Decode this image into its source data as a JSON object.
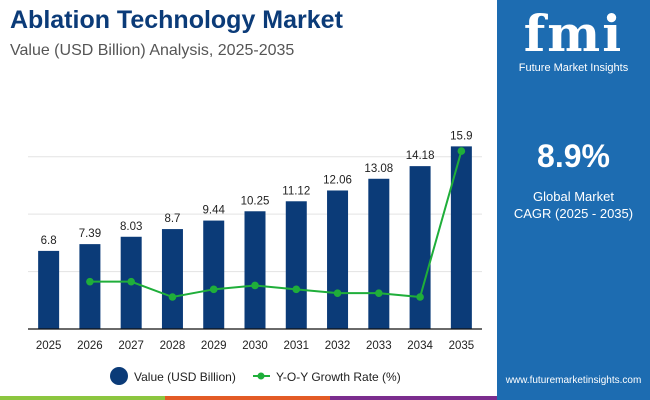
{
  "title": "Ablation Technology Market",
  "subtitle": "Value (USD Billion) Analysis, 2025-2035",
  "side_panel": {
    "logo_text": "fmi",
    "logo_caption": "Future Market Insights",
    "cagr_value": "8.9%",
    "cagr_label_1": "Global Market",
    "cagr_label_2": "CAGR (2025 - 2035)",
    "url": "www.futuremarketinsights.com"
  },
  "colors": {
    "bar": "#0b3b78",
    "line": "#1fae3a",
    "panel": "#1d6cb1",
    "stripe": [
      "#8cc63f",
      "#e35b25",
      "#7b2d8e"
    ]
  },
  "chart_data": {
    "type": "bar+line",
    "categories": [
      "2025",
      "2026",
      "2027",
      "2028",
      "2029",
      "2030",
      "2031",
      "2032",
      "2033",
      "2034",
      "2035"
    ],
    "series": [
      {
        "name": "Value (USD Billion)",
        "type": "bar",
        "values": [
          6.8,
          7.39,
          8.03,
          8.7,
          9.44,
          10.25,
          11.12,
          12.06,
          13.08,
          14.18,
          15.9
        ],
        "labels": [
          "6.8",
          "7.39",
          "8.03",
          "8.7",
          "9.44",
          "10.25",
          "11.12",
          "12.06",
          "13.08",
          "14.18",
          "15.9"
        ]
      },
      {
        "name": "Y-O-Y Growth Rate (%)",
        "type": "line",
        "values": [
          null,
          8.7,
          8.7,
          8.3,
          8.5,
          8.6,
          8.5,
          8.4,
          8.4,
          8.3,
          12.1
        ]
      }
    ],
    "ylim": [
      0,
      17.5
    ],
    "gridlines": [
      5,
      10,
      15
    ],
    "grid": true,
    "legend": "bottom"
  }
}
